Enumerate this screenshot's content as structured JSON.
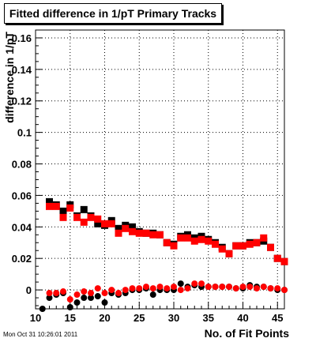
{
  "chart_data": {
    "type": "scatter",
    "title": "Fitted difference in 1/pT Primary Tracks",
    "xlabel": "No. of Fit Points",
    "ylabel": "difference in 1/pT",
    "xlim": [
      10,
      46
    ],
    "ylim": [
      -0.012,
      0.165
    ],
    "x_ticks": [
      10,
      15,
      20,
      25,
      30,
      35,
      40,
      45
    ],
    "y_ticks": [
      0,
      0.02,
      0.04,
      0.06,
      0.08,
      0.1,
      0.12,
      0.14,
      0.16
    ],
    "y_tick_labels": [
      "0",
      "0.02",
      "0.04",
      "0.06",
      "0.08",
      "0.1",
      "0.12",
      "0.14",
      "0.16"
    ],
    "grid": true,
    "legend": "none",
    "series": [
      {
        "color": "#000000",
        "marker": "square",
        "x": [
          12,
          13,
          14,
          15,
          16,
          17,
          18,
          19,
          20,
          21,
          22,
          23,
          24,
          25,
          26,
          27,
          28,
          29,
          30,
          31,
          32,
          33,
          34,
          35,
          36,
          37,
          38,
          39,
          40,
          41,
          42,
          43,
          44,
          45,
          46
        ],
        "y": [
          0.056,
          0.054,
          0.05,
          0.054,
          0.047,
          0.051,
          0.047,
          0.042,
          0.041,
          0.044,
          0.039,
          0.041,
          0.04,
          0.037,
          0.036,
          0.036,
          0.035,
          0.03,
          0.029,
          0.034,
          0.035,
          0.033,
          0.034,
          0.032,
          0.03,
          0.027,
          0.023,
          0.028,
          0.028,
          0.03,
          0.03,
          0.031,
          0.027,
          0.02,
          0.018
        ]
      },
      {
        "color": "#ff0000",
        "marker": "square",
        "x": [
          12,
          13,
          14,
          15,
          16,
          17,
          18,
          19,
          20,
          21,
          22,
          23,
          24,
          25,
          26,
          27,
          28,
          29,
          30,
          31,
          32,
          33,
          34,
          35,
          36,
          37,
          38,
          39,
          40,
          41,
          42,
          43,
          44,
          45,
          46
        ],
        "y": [
          0.053,
          0.053,
          0.046,
          0.052,
          0.046,
          0.043,
          0.046,
          0.045,
          0.042,
          0.042,
          0.036,
          0.039,
          0.037,
          0.036,
          0.036,
          0.035,
          0.035,
          0.03,
          0.028,
          0.033,
          0.033,
          0.031,
          0.032,
          0.031,
          0.029,
          0.026,
          0.023,
          0.028,
          0.028,
          0.029,
          0.03,
          0.033,
          0.027,
          0.02,
          0.018
        ]
      },
      {
        "color": "#000000",
        "marker": "circle",
        "x": [
          11,
          12,
          13,
          14,
          15,
          16,
          17,
          18,
          19,
          20,
          21,
          22,
          23,
          24,
          25,
          26,
          27,
          28,
          29,
          30,
          31,
          32,
          33,
          34,
          35,
          36,
          37,
          38,
          39,
          40,
          41,
          42,
          43,
          44,
          45,
          46
        ],
        "y": [
          -0.012,
          -0.005,
          -0.003,
          -0.002,
          -0.011,
          -0.008,
          -0.005,
          -0.005,
          -0.004,
          -0.008,
          -0.002,
          -0.003,
          -0.002,
          0.0,
          0.0,
          0.001,
          -0.003,
          0.0,
          0.0,
          0.0,
          0.004,
          0.002,
          0.003,
          0.002,
          0.002,
          0.002,
          0.002,
          0.002,
          0.001,
          0.001,
          0.003,
          0.002,
          0.002,
          0.001,
          0.0,
          0.0
        ]
      },
      {
        "color": "#ff0000",
        "marker": "circle",
        "x": [
          12,
          13,
          14,
          15,
          16,
          17,
          18,
          19,
          20,
          21,
          22,
          23,
          24,
          25,
          26,
          27,
          28,
          29,
          30,
          31,
          32,
          33,
          34,
          35,
          36,
          37,
          38,
          39,
          40,
          41,
          42,
          43,
          44,
          45,
          46
        ],
        "y": [
          -0.002,
          -0.002,
          -0.001,
          -0.006,
          -0.003,
          -0.001,
          -0.002,
          0.001,
          -0.002,
          0.0,
          -0.002,
          0.0,
          0.001,
          0.001,
          0.002,
          0.001,
          0.002,
          0.001,
          0.002,
          0.0,
          0.001,
          0.004,
          0.004,
          0.002,
          0.002,
          0.002,
          0.002,
          0.001,
          0.002,
          0.002,
          0.001,
          0.002,
          0.001,
          0.001,
          0.0
        ]
      }
    ]
  },
  "footer": {
    "timestamp": "Mon Oct 31 10:26:01 2011"
  }
}
